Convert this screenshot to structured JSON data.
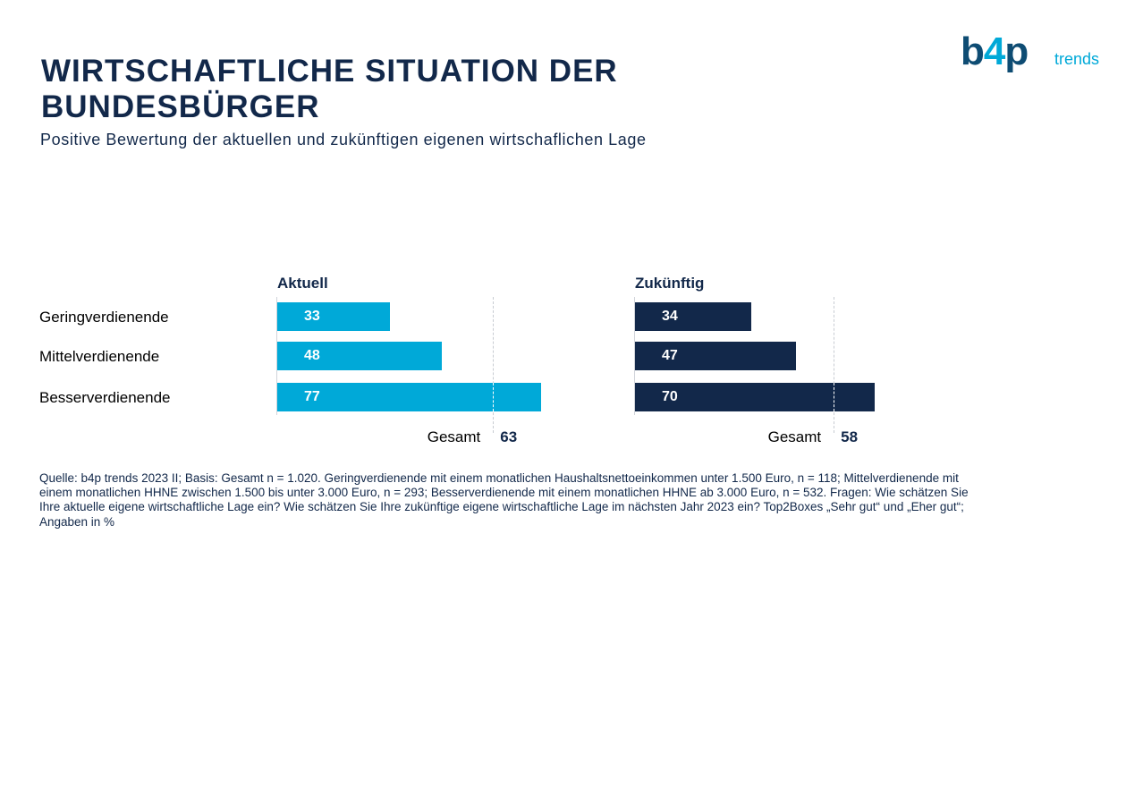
{
  "header": {
    "title": "WIRTSCHAFTLICHE SITUATION DER BUNDESBÜRGER",
    "subtitle": "Positive Bewertung der aktuellen und zukünftigen eigenen wirtschaflichen Lage"
  },
  "logo": {
    "main_left": "b",
    "main_plus": "4",
    "main_right": "p",
    "sub": "trends"
  },
  "chart_data": {
    "type": "bar",
    "orientation": "horizontal",
    "categories": [
      "Geringverdienende",
      "Mittelverdienende",
      "Besserverdienende"
    ],
    "series": [
      {
        "name": "Aktuell",
        "values": [
          33,
          48,
          77
        ],
        "color": "#00a9d8",
        "reference_label": "Gesamt",
        "reference_value": 63
      },
      {
        "name": "Zukünftig",
        "values": [
          34,
          47,
          70
        ],
        "color": "#12284a",
        "reference_label": "Gesamt",
        "reference_value": 58
      }
    ],
    "xlim": [
      0,
      100
    ],
    "grid": false,
    "legend": "none"
  },
  "footnote": "Quelle: b4p trends 2023 II; Basis: Gesamt n = 1.020. Geringverdienende mit einem monatlichen Haushaltsnettoeinkommen unter 1.500 Euro, n = 118; Mittelverdienende mit einem monatlichen HHNE zwischen 1.500 bis unter 3.000 Euro, n = 293; Besserverdienende mit einem monatlichen HHNE ab 3.000 Euro, n = 532. Fragen: Wie schätzen Sie Ihre aktuelle eigene wirtschaftliche Lage ein? Wie schätzen Sie Ihre zukünftige eigene wirtschaftliche Lage im nächsten Jahr 2023 ein? Top2Boxes „Sehr gut“ und „Eher gut“; Angaben in %"
}
